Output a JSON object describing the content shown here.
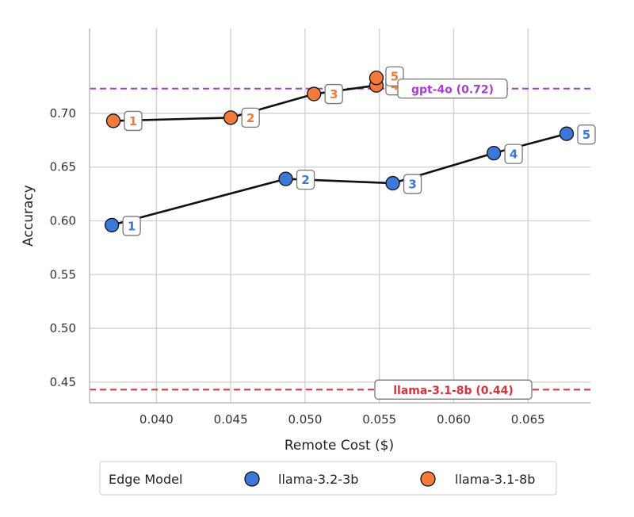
{
  "chart_data": {
    "type": "scatter",
    "xlabel": "Remote Cost ($)",
    "ylabel": "Accuracy",
    "xlim": [
      0.0355,
      0.0692
    ],
    "ylim": [
      0.4307,
      0.7789
    ],
    "xticks": [
      "0.040",
      "0.045",
      "0.050",
      "0.055",
      "0.060",
      "0.065"
    ],
    "yticks": [
      "0.45",
      "0.50",
      "0.55",
      "0.60",
      "0.65",
      "0.70"
    ],
    "grid": true,
    "series": [
      {
        "name": "llama-3.2-3b",
        "color": "#3b78d8",
        "points": [
          {
            "x": 0.037,
            "y": 0.596,
            "label": "1"
          },
          {
            "x": 0.0487,
            "y": 0.639,
            "label": "2"
          },
          {
            "x": 0.0559,
            "y": 0.635,
            "label": "3"
          },
          {
            "x": 0.0627,
            "y": 0.663,
            "label": "4"
          },
          {
            "x": 0.0676,
            "y": 0.681,
            "label": "5"
          }
        ]
      },
      {
        "name": "llama-3.1-8b",
        "color": "#f47a3c",
        "points": [
          {
            "x": 0.0371,
            "y": 0.693,
            "label": "1"
          },
          {
            "x": 0.045,
            "y": 0.696,
            "label": "2"
          },
          {
            "x": 0.0506,
            "y": 0.718,
            "label": "3"
          },
          {
            "x": 0.0548,
            "y": 0.726,
            "label": "4"
          },
          {
            "x": 0.0548,
            "y": 0.733,
            "label": "5"
          }
        ]
      }
    ],
    "reference_lines": [
      {
        "label": "gpt-4o (0.72)",
        "y": 0.723,
        "color": "#a63fcc"
      },
      {
        "label": "llama-3.1-8b (0.44)",
        "y": 0.443,
        "color": "#d9313a"
      }
    ],
    "legend": {
      "title": "Edge Model",
      "placement": "bottom-center",
      "entries": [
        "llama-3.2-3b",
        "llama-3.1-8b"
      ]
    }
  }
}
